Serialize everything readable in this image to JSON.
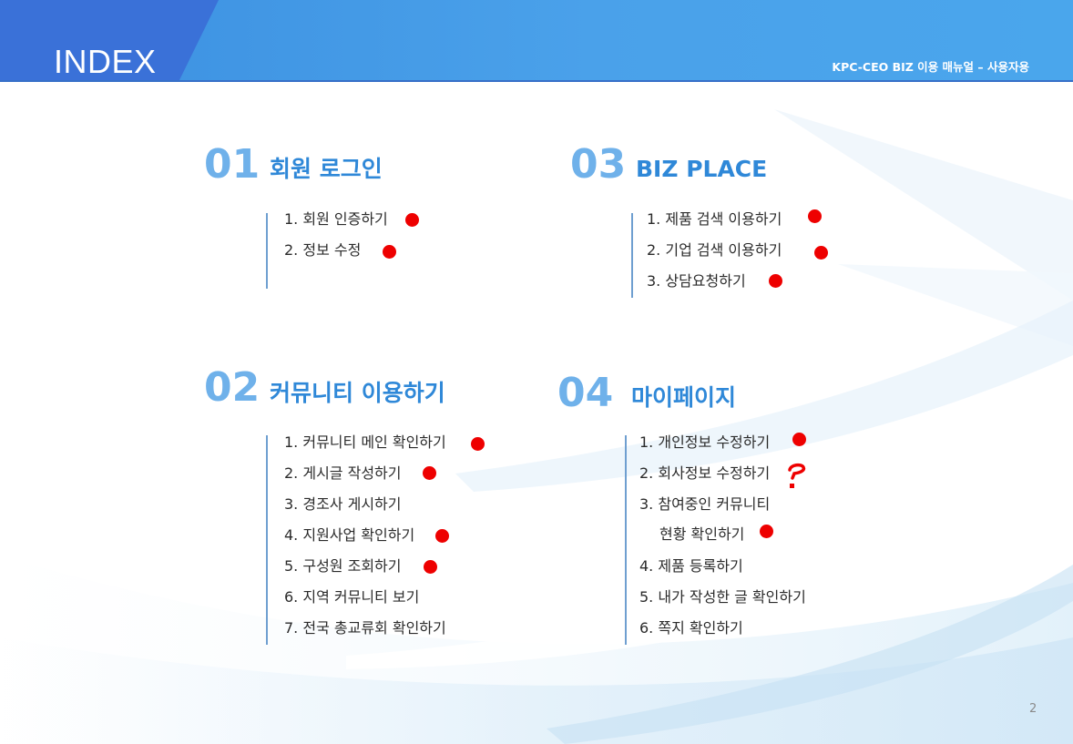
{
  "header": {
    "title": "INDEX",
    "subtitle": "KPC-CEO BIZ 이용 매뉴얼 – 사용자용"
  },
  "sections": [
    {
      "number": "01",
      "title": "회원 로그인",
      "items": [
        "1.  회원 인증하기",
        "2.  정보 수정"
      ]
    },
    {
      "number": "02",
      "title": "커뮤니티 이용하기",
      "items": [
        "1.  커뮤니티 메인 확인하기",
        "2.  게시글 작성하기",
        "3.  경조사 게시하기",
        "4.  지원사업 확인하기",
        "5.  구성원 조회하기",
        "6.  지역 커뮤니티 보기",
        "7.  전국 총교류회 확인하기"
      ]
    },
    {
      "number": "03",
      "title": "BIZ PLACE",
      "items": [
        "1.  제품 검색 이용하기",
        "2.  기업 검색 이용하기",
        "3.  상담요청하기"
      ]
    },
    {
      "number": "04",
      "title": "마이페이지",
      "items": [
        "1.  개인정보 수정하기",
        "2.  회사정보 수정하기",
        "3.  참여중인 커뮤니티",
        "현황 확인하기",
        "4.  제품 등록하기",
        "5.  내가 작성한 글 확인하기",
        "6.  쪽지 확인하기"
      ]
    }
  ],
  "annotation_color": "#ee0000",
  "accent_color": "#2f88d8",
  "page_number": "2"
}
